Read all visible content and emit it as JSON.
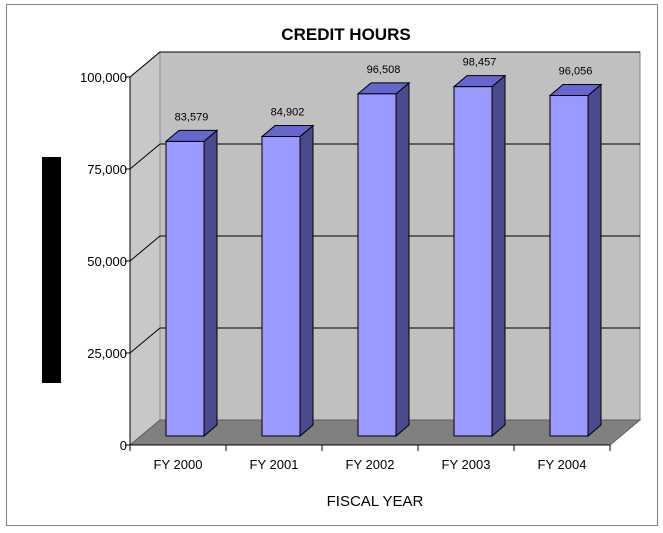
{
  "chart_data": {
    "type": "bar",
    "title": "CREDIT HOURS",
    "xlabel": "FISCAL YEAR",
    "ylabel": "",
    "categories": [
      "FY 2000",
      "FY 2001",
      "FY 2002",
      "FY 2003",
      "FY 2004"
    ],
    "values": [
      83579,
      84902,
      96508,
      98457,
      96056
    ],
    "data_labels": [
      "83,579",
      "84,902",
      "96,508",
      "98,457",
      "96,056"
    ],
    "yticks": [
      0,
      25000,
      50000,
      75000,
      100000
    ],
    "ytick_labels": [
      "0",
      "25,000",
      "50,000",
      "75,000",
      "100,000"
    ],
    "ylim": [
      0,
      100000
    ],
    "grid": true,
    "legend": "none",
    "colors": {
      "bar_front": "#9999ff",
      "bar_side": "#4a4a8c",
      "bar_top": "#6666cc",
      "wall": "#c0c0c0",
      "floor": "#808080",
      "gridline": "#000000",
      "ylabel_block": "#000000"
    }
  }
}
